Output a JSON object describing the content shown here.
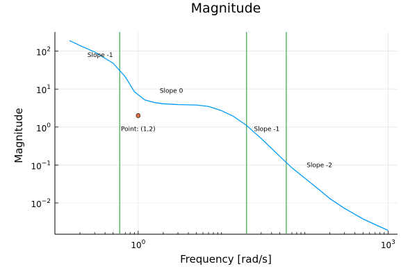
{
  "chart_data": {
    "type": "line",
    "title": "Magnitude",
    "xlabel": "Frequency [rad/s]",
    "ylabel": "Magnitude",
    "x_scale": "log",
    "y_scale": "log",
    "xlim": [
      0.1,
      1300
    ],
    "ylim": [
      0.0015,
      320
    ],
    "grid": true,
    "legend": "none",
    "x_ticks": [
      {
        "value": 1,
        "base": "10",
        "exp": "0"
      },
      {
        "value": 1000,
        "base": "10",
        "exp": "3"
      }
    ],
    "y_ticks": [
      {
        "value": 0.01,
        "base": "10",
        "exp": "−2"
      },
      {
        "value": 0.1,
        "base": "10",
        "exp": "−1"
      },
      {
        "value": 1,
        "base": "10",
        "exp": "0"
      },
      {
        "value": 10,
        "base": "10",
        "exp": "1"
      },
      {
        "value": 100,
        "base": "10",
        "exp": "2"
      }
    ],
    "series": [
      {
        "color": "#009AFA",
        "x": [
          0.15,
          0.2,
          0.3,
          0.5,
          0.7,
          0.9,
          1.2,
          1.6,
          2,
          3,
          5,
          7,
          10,
          14,
          20,
          30,
          50,
          70,
          100,
          150,
          200,
          300,
          500,
          700,
          1000
        ],
        "y": [
          190,
          140,
          95,
          48,
          21,
          8.5,
          5.2,
          4.4,
          4.1,
          3.9,
          3.8,
          3.5,
          2.7,
          1.9,
          1.1,
          0.5,
          0.17,
          0.085,
          0.045,
          0.022,
          0.013,
          0.0072,
          0.0038,
          0.0027,
          0.0019
        ]
      }
    ],
    "vlines": {
      "color": "#3DA44D",
      "x": [
        0.6,
        20,
        60
      ]
    },
    "points": [
      {
        "x": 1,
        "y": 2,
        "color": "#E26F46"
      }
    ],
    "annotations": [
      {
        "text": "Slope -1",
        "x": 0.35,
        "y": 80
      },
      {
        "text": "Slope 0",
        "x": 2.5,
        "y": 9
      },
      {
        "text": "Point: (1,2)",
        "x": 1,
        "y": 0.9
      },
      {
        "text": "Slope -1",
        "x": 35,
        "y": 0.9
      },
      {
        "text": "Slope -2",
        "x": 150,
        "y": 0.1
      }
    ]
  }
}
